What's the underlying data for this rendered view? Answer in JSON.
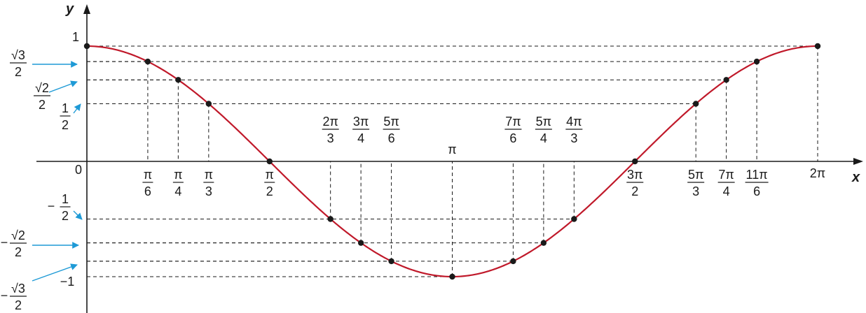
{
  "chart_data": {
    "type": "line",
    "function": "cos",
    "x_axis_label": "x",
    "y_axis_label": "y",
    "origin_label": "0",
    "xlim": [
      -0.45,
      6.6
    ],
    "ylim": [
      -1.28,
      1.22
    ],
    "colors": {
      "curve": "#c0192a",
      "axis": "#1a1a1a",
      "arrow": "#1e9ad6",
      "guide": "#1a1a1a"
    },
    "points": [
      {
        "x": 0,
        "y": 1
      },
      {
        "x": 0.5236,
        "y": 0.866,
        "label": {
          "num": "π",
          "den": "6"
        }
      },
      {
        "x": 0.7854,
        "y": 0.7071,
        "label": {
          "num": "π",
          "den": "4"
        }
      },
      {
        "x": 1.0472,
        "y": 0.5,
        "label": {
          "num": "π",
          "den": "3"
        }
      },
      {
        "x": 1.5708,
        "y": 0,
        "label": {
          "num": "π",
          "den": "2"
        }
      },
      {
        "x": 2.0944,
        "y": -0.5,
        "label": {
          "num": "2π",
          "den": "3"
        }
      },
      {
        "x": 2.3562,
        "y": -0.7071,
        "label": {
          "num": "3π",
          "den": "4"
        }
      },
      {
        "x": 2.618,
        "y": -0.866,
        "label": {
          "num": "5π",
          "den": "6"
        }
      },
      {
        "x": 3.1416,
        "y": -1,
        "label": {
          "text": "π"
        }
      },
      {
        "x": 3.6652,
        "y": -0.866,
        "label": {
          "num": "7π",
          "den": "6"
        }
      },
      {
        "x": 3.927,
        "y": -0.7071,
        "label": {
          "num": "5π",
          "den": "4"
        }
      },
      {
        "x": 4.1888,
        "y": -0.5,
        "label": {
          "num": "4π",
          "den": "3"
        }
      },
      {
        "x": 4.7124,
        "y": 0,
        "label": {
          "num": "3π",
          "den": "2"
        }
      },
      {
        "x": 5.236,
        "y": 0.5,
        "label": {
          "num": "5π",
          "den": "3"
        }
      },
      {
        "x": 5.4978,
        "y": 0.7071,
        "label": {
          "num": "7π",
          "den": "4"
        }
      },
      {
        "x": 5.7596,
        "y": 0.866,
        "label": {
          "num": "11π",
          "den": "6"
        }
      },
      {
        "x": 6.2832,
        "y": 1,
        "label": {
          "text": "2π"
        }
      }
    ],
    "y_labels": [
      {
        "y": 1,
        "text": "1"
      },
      {
        "y": 0.866,
        "num": "√3",
        "den": "2",
        "arrow": true
      },
      {
        "y": 0.7071,
        "num": "√2",
        "den": "2",
        "arrow": true
      },
      {
        "y": 0.5,
        "num": "1",
        "den": "2",
        "arrow": true
      },
      {
        "y": -0.5,
        "sign": "−",
        "num": "1",
        "den": "2",
        "arrow": true
      },
      {
        "y": -0.7071,
        "sign": "−",
        "num": "√2",
        "den": "2",
        "arrow": true
      },
      {
        "y": -0.866,
        "sign": "−",
        "num": "√3",
        "den": "2",
        "arrow": true
      },
      {
        "y": -1,
        "text": "−1"
      }
    ]
  }
}
